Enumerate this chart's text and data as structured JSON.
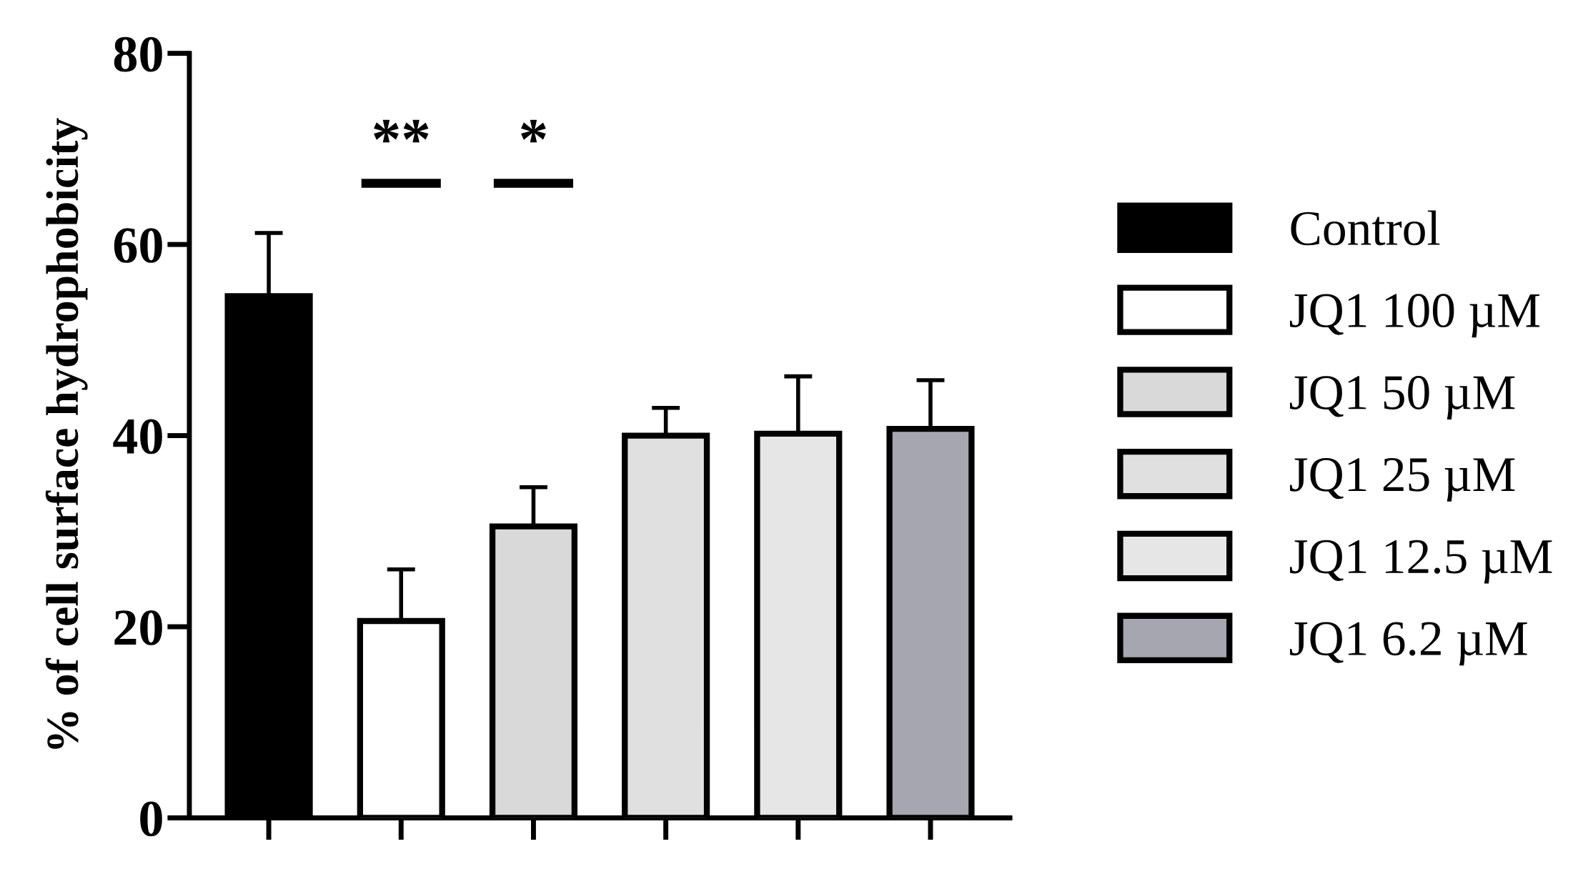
{
  "chart_data": {
    "type": "bar",
    "ylabel": "% of cell surface hydrophobicity",
    "categories": [
      null,
      null,
      null,
      null,
      null,
      null
    ],
    "series": [
      {
        "name": "Control",
        "color": "#000000",
        "values": [
          54.6,
          null,
          null,
          null,
          null,
          null
        ],
        "errors": [
          [
            54.6,
            61.2
          ],
          null,
          null,
          null,
          null,
          null
        ]
      },
      {
        "name": "JQ1 100 µM",
        "color": "#ffffff",
        "values": [
          null,
          20.6,
          null,
          null,
          null,
          null
        ],
        "errors": [
          null,
          [
            20.6,
            26.0
          ],
          null,
          null,
          null,
          null
        ]
      },
      {
        "name": "JQ1 50 µM",
        "color": "#d9d9d9",
        "values": [
          null,
          null,
          30.5,
          null,
          null,
          null
        ],
        "errors": [
          null,
          null,
          [
            30.5,
            34.6
          ],
          null,
          null,
          null
        ]
      },
      {
        "name": "JQ1 25 µM",
        "color": "#e0e0e0",
        "values": [
          null,
          null,
          null,
          40.0,
          null,
          null
        ],
        "errors": [
          null,
          null,
          null,
          [
            40.0,
            42.9
          ],
          null,
          null
        ]
      },
      {
        "name": "JQ1 12.5 µM",
        "color": "#e6e6e6",
        "values": [
          null,
          null,
          null,
          null,
          40.2,
          null
        ],
        "errors": [
          null,
          null,
          null,
          null,
          [
            40.2,
            46.2
          ],
          null
        ]
      },
      {
        "name": "JQ1 6.2 µM",
        "color": "#a6a6b0",
        "values": [
          null,
          null,
          null,
          null,
          null,
          40.7
        ],
        "errors": [
          null,
          null,
          null,
          null,
          null,
          [
            40.7,
            45.8
          ]
        ]
      }
    ],
    "ylim": [
      0,
      80
    ],
    "yticks": [
      0,
      20,
      40,
      60,
      80
    ],
    "tick_labels": "y",
    "legend": "right",
    "annotations": [
      "**",
      "*"
    ]
  }
}
